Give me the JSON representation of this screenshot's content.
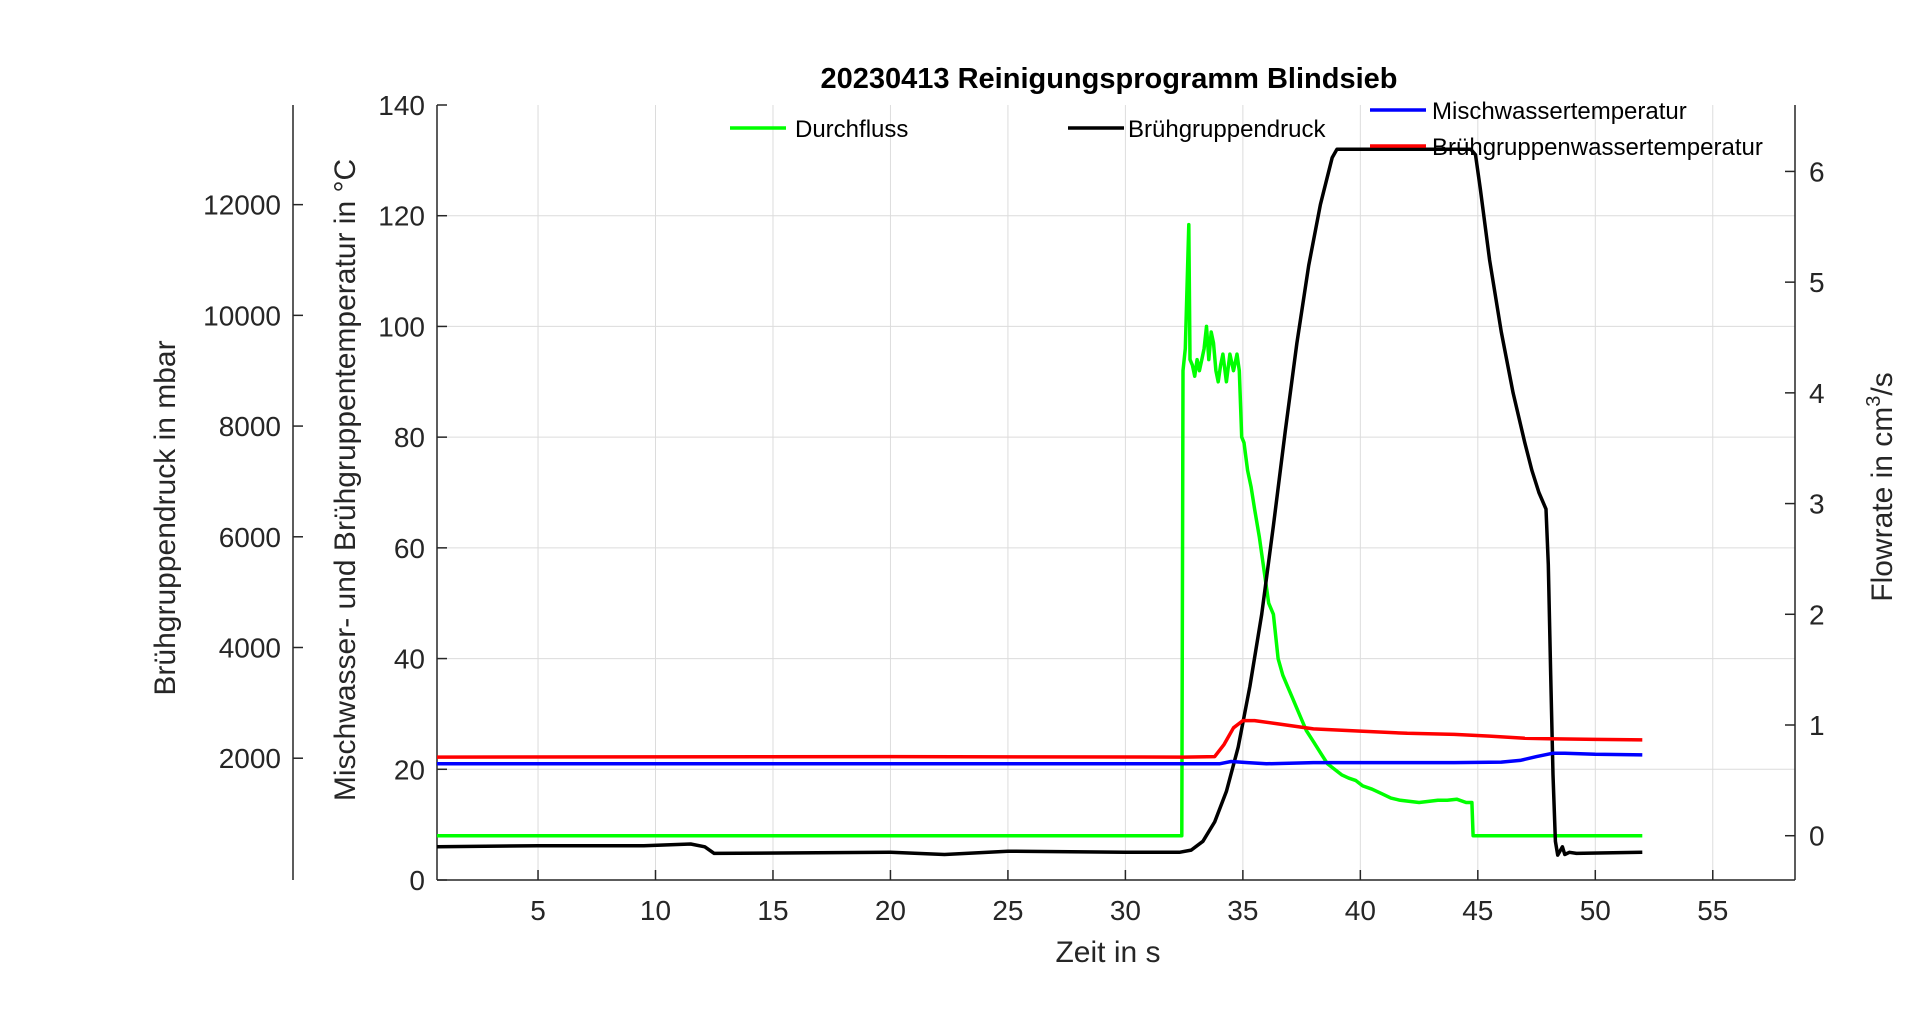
{
  "chart_data": {
    "type": "line",
    "title": "20230413 Reinigungsprogramm  Blindsieb",
    "xlabel": "Zeit in s",
    "xlim": [
      0.7,
      58.5
    ],
    "xticks": [
      5,
      10,
      15,
      20,
      25,
      30,
      35,
      40,
      45,
      50,
      55
    ],
    "grid": true,
    "legend": "top",
    "axes": {
      "pressure": {
        "label": "Brühgruppendruck in mbar",
        "ylim": [
          -200,
          13800
        ],
        "ticks": [
          2000,
          4000,
          6000,
          8000,
          10000,
          12000
        ],
        "position": "outer-left"
      },
      "temperature": {
        "label": "Mischwasser- und Brühgruppentemperatur in °C",
        "ylim": [
          0,
          140
        ],
        "ticks": [
          0,
          20,
          40,
          60,
          80,
          100,
          120,
          140
        ],
        "position": "left"
      },
      "flow": {
        "label": "Flowrate in cm³/s",
        "label_main": "Flowrate in cm",
        "label_sup": "3",
        "label_tail": "/s",
        "ylim": [
          -0.4,
          6.6
        ],
        "ticks": [
          0,
          1,
          2,
          3,
          4,
          5,
          6
        ],
        "position": "right"
      }
    },
    "series": [
      {
        "name": "Durchfluss",
        "axis": "flow",
        "color": "#00ff00",
        "x": [
          0.7,
          32.4,
          32.45,
          32.55,
          32.7,
          32.75,
          32.85,
          32.95,
          33.05,
          33.15,
          33.25,
          33.35,
          33.45,
          33.55,
          33.65,
          33.75,
          33.85,
          33.95,
          34.05,
          34.15,
          34.3,
          34.45,
          34.6,
          34.75,
          34.85,
          34.95,
          35.05,
          35.2,
          35.35,
          35.5,
          35.7,
          35.9,
          36.1,
          36.3,
          36.5,
          36.7,
          36.9,
          37.1,
          37.3,
          37.5,
          37.7,
          38.0,
          38.3,
          38.6,
          38.9,
          39.2,
          39.5,
          39.8,
          40.1,
          40.5,
          40.9,
          41.3,
          41.7,
          42.1,
          42.5,
          42.9,
          43.3,
          43.7,
          44.1,
          44.5,
          44.75,
          44.8,
          52.0
        ],
        "values": [
          0.0,
          0.0,
          4.2,
          4.4,
          5.52,
          4.3,
          4.25,
          4.15,
          4.3,
          4.2,
          4.3,
          4.4,
          4.6,
          4.3,
          4.55,
          4.45,
          4.2,
          4.1,
          4.25,
          4.35,
          4.1,
          4.35,
          4.2,
          4.35,
          4.2,
          3.6,
          3.55,
          3.3,
          3.15,
          2.95,
          2.7,
          2.4,
          2.1,
          2.0,
          1.6,
          1.45,
          1.35,
          1.25,
          1.15,
          1.05,
          0.95,
          0.85,
          0.75,
          0.65,
          0.6,
          0.55,
          0.52,
          0.5,
          0.45,
          0.42,
          0.38,
          0.34,
          0.32,
          0.31,
          0.3,
          0.31,
          0.32,
          0.32,
          0.33,
          0.3,
          0.3,
          0.0,
          0.0
        ]
      },
      {
        "name": "Brühgruppendruck",
        "axis": "pressure",
        "color": "#000000",
        "x": [
          0.7,
          5,
          9.5,
          11.5,
          12.1,
          12.5,
          20,
          22.3,
          25,
          30,
          32.3,
          32.8,
          33.3,
          33.8,
          34.3,
          34.8,
          35.3,
          35.8,
          36.3,
          36.8,
          37.3,
          37.8,
          38.3,
          38.8,
          39.0,
          44.7,
          44.9,
          45.1,
          45.5,
          46,
          46.5,
          47,
          47.3,
          47.6,
          47.9,
          48.0,
          48.1,
          48.2,
          48.3,
          48.4,
          48.6,
          48.7,
          48.9,
          49.2,
          52.0
        ],
        "values": [
          400,
          420,
          420,
          450,
          400,
          280,
          300,
          260,
          320,
          300,
          300,
          340,
          500,
          850,
          1400,
          2200,
          3300,
          4600,
          6200,
          7900,
          9500,
          10900,
          12000,
          12850,
          13000,
          13000,
          12900,
          12300,
          11000,
          9700,
          8600,
          7700,
          7200,
          6800,
          6500,
          5500,
          3500,
          1700,
          500,
          250,
          400,
          260,
          300,
          280,
          300
        ]
      },
      {
        "name": "Mischwassertemperatur",
        "axis": "temperature",
        "color": "#0000ff",
        "x": [
          0.7,
          20,
          32.5,
          34,
          34.5,
          35.2,
          36,
          38,
          40,
          44,
          46,
          46.8,
          47.5,
          48.2,
          48.7,
          50,
          52.0
        ],
        "values": [
          21.0,
          21.0,
          21.0,
          21.0,
          21.4,
          21.2,
          21.0,
          21.2,
          21.2,
          21.2,
          21.3,
          21.6,
          22.3,
          22.9,
          22.9,
          22.7,
          22.6
        ]
      },
      {
        "name": "Brühgruppenwassertemperatur",
        "axis": "temperature",
        "color": "#ff0000",
        "x": [
          0.7,
          20,
          32.5,
          33.8,
          34.2,
          34.6,
          35.0,
          35.5,
          36.5,
          38,
          40,
          42,
          44,
          45.5,
          47,
          48,
          50,
          52.0
        ],
        "values": [
          22.2,
          22.3,
          22.2,
          22.3,
          24.5,
          27.5,
          28.8,
          28.8,
          28.2,
          27.3,
          26.9,
          26.5,
          26.3,
          26.0,
          25.6,
          25.5,
          25.4,
          25.3
        ]
      }
    ]
  }
}
